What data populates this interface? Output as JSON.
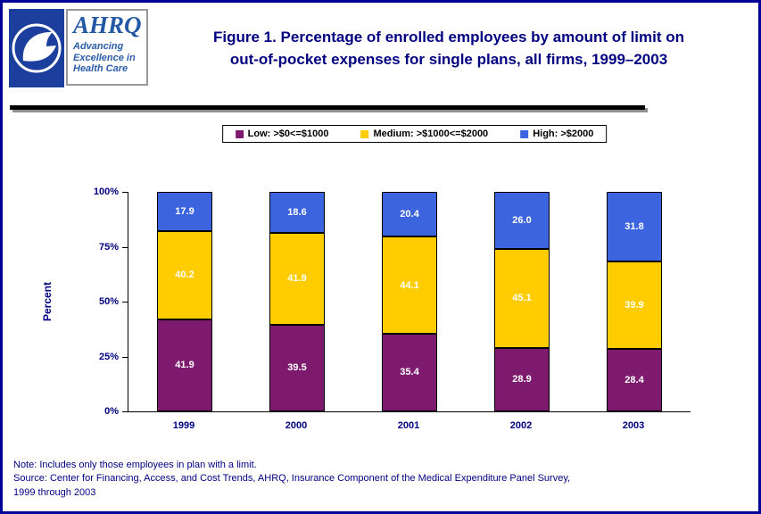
{
  "page": {
    "border_color": "#000099",
    "background": "#FFFFFF"
  },
  "header": {
    "ahrq_logo": {
      "acronym": "AHRQ",
      "tagline_line1": "Advancing",
      "tagline_line2": "Excellence in",
      "tagline_line3": "Health Care"
    },
    "title_line1": "Figure 1. Percentage of enrolled employees by amount of limit on",
    "title_line2": "out-of-pocket expenses for single plans, all firms, 1999–2003"
  },
  "chart_data": {
    "type": "bar",
    "stacked": true,
    "title": "Figure 1. Percentage of enrolled employees by amount of limit on out-of-pocket expenses for single plans, all firms, 1999–2003",
    "categories": [
      "1999",
      "2000",
      "2001",
      "2002",
      "2003"
    ],
    "series": [
      {
        "name": "Low: >$0<=$1000",
        "color": "#7D1A6E",
        "values": [
          41.9,
          39.5,
          35.4,
          28.9,
          28.4
        ],
        "labels": [
          "41.9",
          "39.5",
          "35.4",
          "28.9",
          "28.4"
        ]
      },
      {
        "name": "Medium: >$1000<=$2000",
        "color": "#FFCC00",
        "values": [
          40.2,
          41.9,
          44.1,
          45.1,
          39.9
        ],
        "labels": [
          "40.2",
          "41.9",
          "44.1",
          "45.1",
          "39.9"
        ]
      },
      {
        "name": "High: >$2000",
        "color": "#3B64DE",
        "values": [
          17.9,
          18.6,
          20.4,
          26.0,
          31.8
        ],
        "labels": [
          "17.9",
          "18.6",
          "20.4",
          "26.0",
          "31.8"
        ]
      }
    ],
    "xlabel": "",
    "ylabel": "Percent",
    "ylim": [
      0,
      100
    ],
    "yticks": [
      {
        "value": 0,
        "label": "0%"
      },
      {
        "value": 25,
        "label": "25%"
      },
      {
        "value": 50,
        "label": "50%"
      },
      {
        "value": 75,
        "label": "75%"
      },
      {
        "value": 100,
        "label": "100%"
      }
    ],
    "legend_position": "top",
    "grid": false,
    "bar_label_color": "#FFFFFF"
  },
  "footer": {
    "note": "Note: Includes only those employees in plan with a limit.",
    "source_line1": "Source: Center for Financing, Access, and Cost Trends, AHRQ, Insurance Component of the Medical Expenditure Panel Survey,",
    "source_line2": "1999 through 2003"
  }
}
